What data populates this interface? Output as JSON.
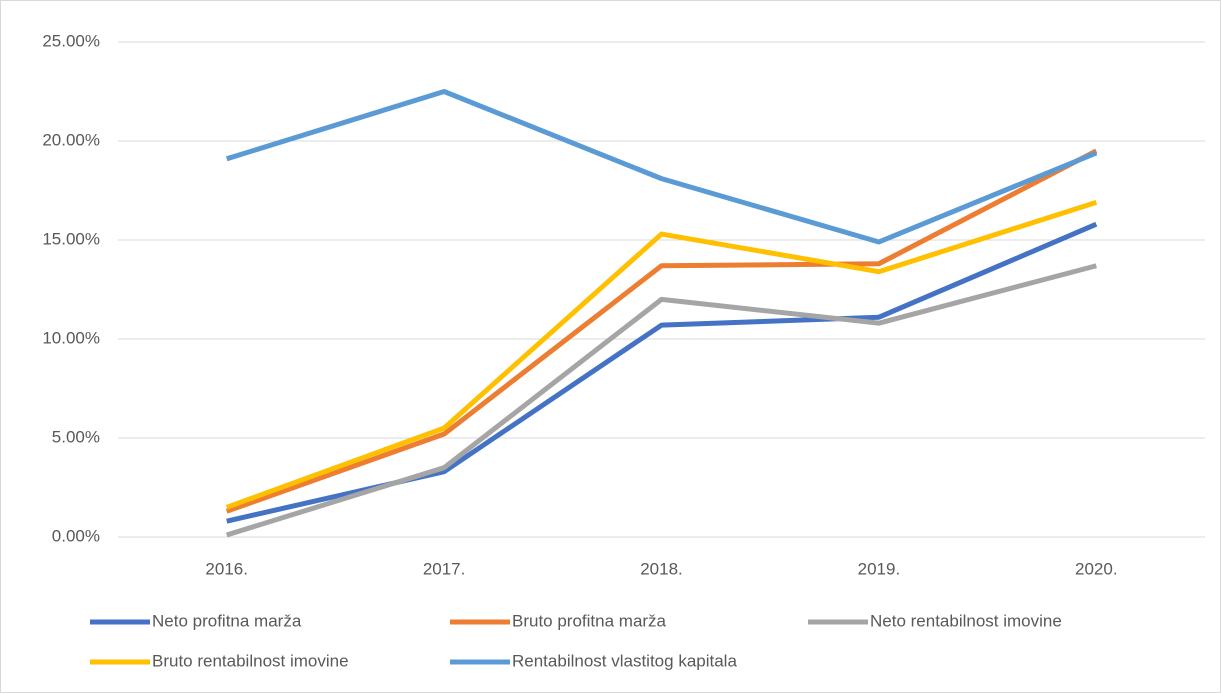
{
  "chart_data": {
    "type": "line",
    "categories": [
      "2016.",
      "2017.",
      "2018.",
      "2019.",
      "2020."
    ],
    "series": [
      {
        "name": "Neto profitna marža",
        "color": "#4472c4",
        "values": [
          0.8,
          3.3,
          10.7,
          11.1,
          15.8
        ]
      },
      {
        "name": "Bruto profitna marža",
        "color": "#ed7d31",
        "values": [
          1.3,
          5.2,
          13.7,
          13.8,
          19.5
        ]
      },
      {
        "name": "Neto rentabilnost imovine",
        "color": "#a5a5a5",
        "values": [
          0.1,
          3.5,
          12.0,
          10.8,
          13.7
        ]
      },
      {
        "name": "Bruto rentabilnost imovine",
        "color": "#ffc000",
        "values": [
          1.5,
          5.5,
          15.3,
          13.4,
          16.9
        ]
      },
      {
        "name": "Rentabilnost vlastitog kapitala",
        "color": "#5b9bd5",
        "values": [
          19.1,
          22.5,
          18.1,
          14.9,
          19.4
        ]
      }
    ],
    "ylim": [
      0,
      25
    ],
    "yticks": [
      {
        "value": 0,
        "label": "0.00%"
      },
      {
        "value": 5,
        "label": "5.00%"
      },
      {
        "value": 10,
        "label": "10.00%"
      },
      {
        "value": 15,
        "label": "15.00%"
      },
      {
        "value": 20,
        "label": "20.00%"
      },
      {
        "value": 25,
        "label": "25.00%"
      }
    ],
    "grid": true,
    "legend": "bottom"
  }
}
